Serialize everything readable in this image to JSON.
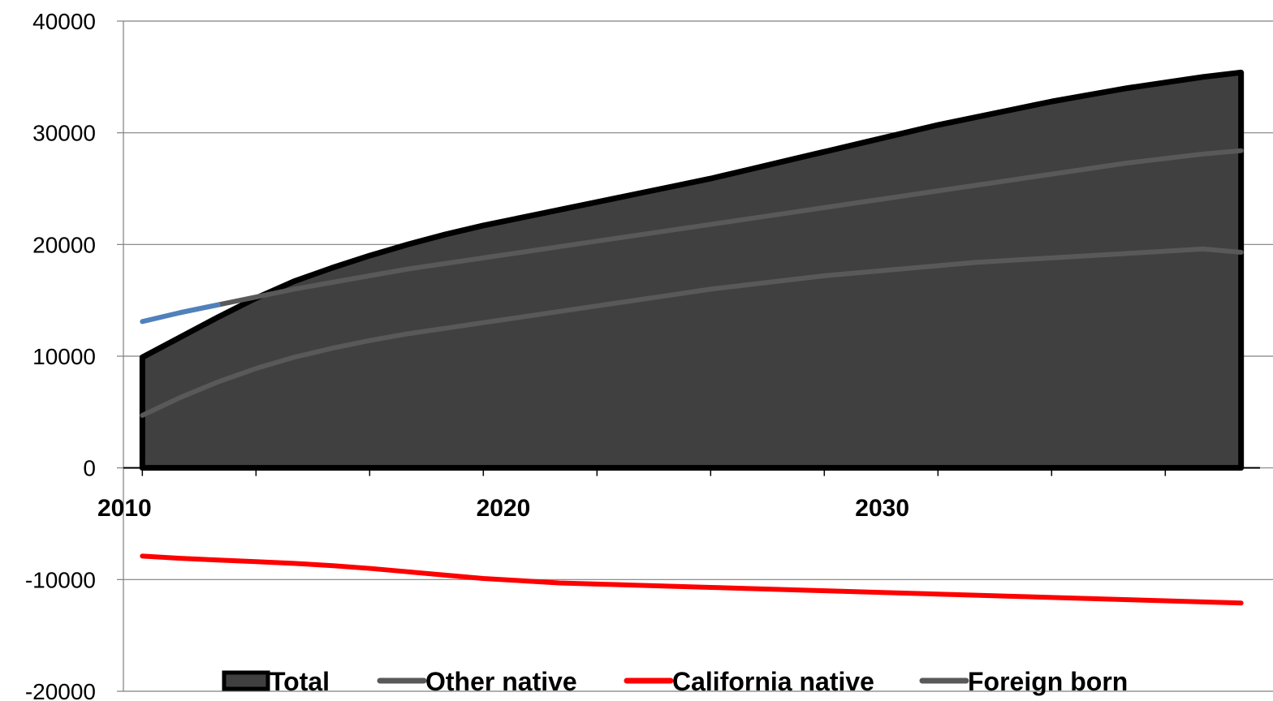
{
  "chart_data": {
    "type": "area",
    "x": [
      2010,
      2011,
      2012,
      2013,
      2014,
      2015,
      2016,
      2017,
      2018,
      2019,
      2020,
      2021,
      2022,
      2023,
      2024,
      2025,
      2026,
      2027,
      2028,
      2029,
      2030,
      2031,
      2032,
      2033,
      2034,
      2035,
      2036,
      2037,
      2038,
      2039
    ],
    "x_tick_labels": [
      "2010",
      "2020",
      "2030"
    ],
    "y_tick_labels": [
      "40000",
      "30000",
      "20000",
      "10000",
      "0",
      "-10000",
      "-20000"
    ],
    "ylim": [
      -20000,
      40000
    ],
    "xlim": [
      2009.5,
      2039.5
    ],
    "grid": "horizontal",
    "legend_position": "bottom",
    "series": [
      {
        "name": "Total",
        "style": "area",
        "color": "#404040",
        "outline": "#000000",
        "values": [
          9900,
          11700,
          13500,
          15200,
          16700,
          17900,
          19000,
          20000,
          20900,
          21700,
          22400,
          23100,
          23800,
          24500,
          25200,
          25900,
          26700,
          27500,
          28300,
          29100,
          29900,
          30700,
          31400,
          32100,
          32800,
          33400,
          34000,
          34500,
          35000,
          35400
        ]
      },
      {
        "name": "Other native",
        "style": "line",
        "color": "#595959",
        "values": [
          4700,
          6300,
          7700,
          8900,
          9900,
          10700,
          11400,
          12000,
          12500,
          13000,
          13500,
          14000,
          14500,
          15000,
          15500,
          16000,
          16400,
          16800,
          17200,
          17500,
          17800,
          18100,
          18400,
          18600,
          18800,
          19000,
          19200,
          19400,
          19600,
          19300
        ]
      },
      {
        "name": "California native",
        "style": "line",
        "color": "#ff0000",
        "values": [
          -7900,
          -8100,
          -8250,
          -8400,
          -8550,
          -8750,
          -9000,
          -9300,
          -9600,
          -9900,
          -10100,
          -10300,
          -10400,
          -10500,
          -10600,
          -10700,
          -10800,
          -10900,
          -11000,
          -11100,
          -11200,
          -11300,
          -11400,
          -11500,
          -11600,
          -11700,
          -11800,
          -11900,
          -12000,
          -12100
        ]
      },
      {
        "name": "Foreign born",
        "style": "line",
        "color": "#595959",
        "segment_color_first": "#4f81bd",
        "values": [
          13100,
          13900,
          14600,
          15300,
          16000,
          16600,
          17200,
          17800,
          18300,
          18800,
          19300,
          19800,
          20300,
          20800,
          21300,
          21800,
          22300,
          22800,
          23300,
          23800,
          24300,
          24800,
          25300,
          25800,
          26300,
          26800,
          27300,
          27700,
          28100,
          28400
        ]
      }
    ]
  }
}
